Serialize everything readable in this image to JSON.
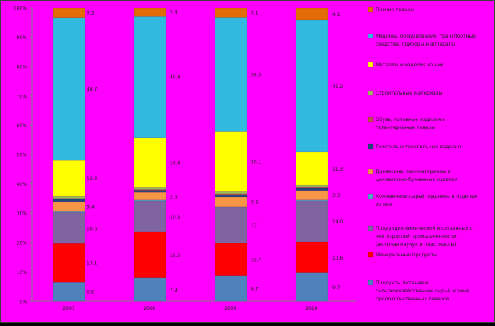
{
  "chart_data": {
    "type": "bar",
    "stacked": "percent",
    "categories": [
      "2007",
      "2008",
      "2009",
      "2010"
    ],
    "y_ticks": [
      "0%",
      "10%",
      "20%",
      "30%",
      "40%",
      "50%",
      "60%",
      "70%",
      "80%",
      "90%",
      "100%"
    ],
    "ylim": [
      0,
      100
    ],
    "grid": false,
    "legend_position": "right",
    "colors": {
      "background": "#FF00FF",
      "border": "#404040",
      "text": "#202020"
    },
    "series": [
      {
        "name": "Продукты питания и сельскохозяйственное сырье",
        "color": "#4F81BD",
        "values": [
          6.5,
          7.9,
          8.7,
          9.7
        ]
      },
      {
        "name": "Минеральные продукты",
        "color": "#FF0000",
        "values": [
          13.1,
          15.3,
          10.7,
          10.6
        ]
      },
      {
        "name": "Продукция химической промышленности",
        "color": "#8064A2",
        "values": [
          10.6,
          10.5,
          12.1,
          14.0
        ]
      },
      {
        "name": "Кожевенное сырьё, пушнина",
        "color": "#4BACC6",
        "values": [
          0.3,
          0.3,
          0.3,
          0.3
        ]
      },
      {
        "name": "Древесина",
        "color": "#F79646",
        "values": [
          3.4,
          2.6,
          3.2,
          3.3
        ]
      },
      {
        "name": "Текстиль",
        "color": "#1F497D",
        "values": [
          0.8,
          0.7,
          0.8,
          0.8
        ]
      },
      {
        "name": "Обувь",
        "color": "#C0504D",
        "values": [
          0.3,
          0.3,
          0.3,
          0.3
        ]
      },
      {
        "name": "Строительные материалы",
        "color": "#9BBB59",
        "values": [
          0.7,
          0.6,
          0.7,
          0.7
        ]
      },
      {
        "name": "Металлы",
        "color": "#FFFF00",
        "values": [
          12.3,
          16.8,
          20.1,
          11.3
        ]
      },
      {
        "name": "Машины и оборудование",
        "color": "#31B9E0",
        "values": [
          48.7,
          40.8,
          38.5,
          45.2
        ]
      },
      {
        "name": "Прочие товары",
        "color": "#E36C09",
        "values": [
          3.2,
          2.8,
          3.1,
          4.1
        ]
      }
    ],
    "label_series": [
      0,
      1,
      2,
      4,
      8,
      9,
      10
    ],
    "labels": [
      [
        "6.5",
        "13.1",
        "10.6",
        "3.4",
        "12.3",
        "48.7",
        "3.2"
      ],
      [
        "7.9",
        "15.3",
        "10.5",
        "2.6",
        "16.8",
        "40.8",
        "2.8"
      ],
      [
        "8.7",
        "10.7",
        "12.1",
        "3.2",
        "20.1",
        "38.5",
        "3.1"
      ],
      [
        "9.7",
        "10.6",
        "14.0",
        "3.3",
        "11.3",
        "45.2",
        "4.1"
      ]
    ],
    "legend": [
      {
        "label": "Прочие товары",
        "color": "#E36C09"
      },
      {
        "label": "Машины, оборудование, транспортные средства, приборы и аппараты",
        "color": "#31B9E0"
      },
      {
        "label": "Металлы и изделия из них",
        "color": "#FFFF00"
      },
      {
        "label": "Строительные материалы",
        "color": "#9BBB59"
      },
      {
        "label": "Обувь, головные изделия и галантерейные товары",
        "color": "#C0504D"
      },
      {
        "label": "Текстиль и текстильные изделия",
        "color": "#1F497D"
      },
      {
        "label": "Древесина, лесоматериалы и целлюлозно-бумажные изделия",
        "color": "#F79646"
      },
      {
        "label": "Кожевенное сырьё, пушнина и изделия из них",
        "color": "#4BACC6"
      },
      {
        "label": "Продукция химической и связанных с ней отраслей промышленности (включая каучук и пластмассы)",
        "color": "#8064A2"
      },
      {
        "label": "Минеральные продукты",
        "color": "#FF0000"
      },
      {
        "label": "Продукты питания и сельскохозяйственное сырьё, кроме продовольственных товаров",
        "color": "#4F81BD"
      }
    ]
  }
}
